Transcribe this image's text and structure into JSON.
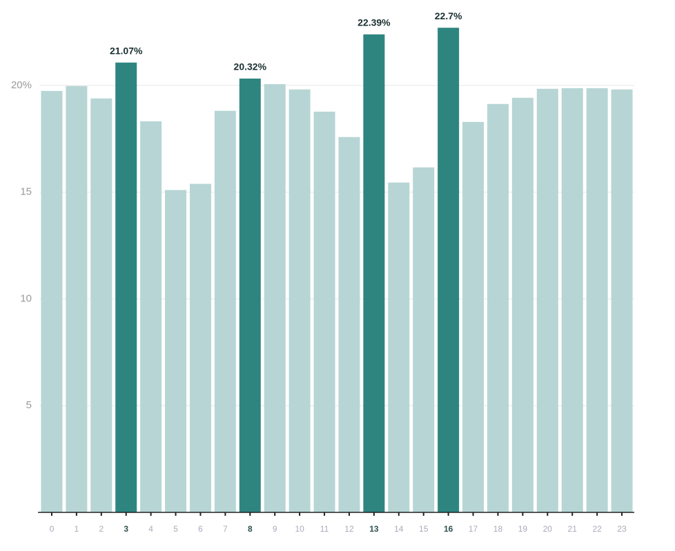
{
  "chart_data": {
    "type": "bar",
    "categories": [
      "0",
      "1",
      "2",
      "3",
      "4",
      "5",
      "6",
      "7",
      "8",
      "9",
      "10",
      "11",
      "12",
      "13",
      "14",
      "15",
      "16",
      "17",
      "18",
      "19",
      "20",
      "21",
      "22",
      "23"
    ],
    "values": [
      19.74,
      19.97,
      19.39,
      21.07,
      18.32,
      15.1,
      15.39,
      18.81,
      20.32,
      20.06,
      19.81,
      18.77,
      17.58,
      22.39,
      15.45,
      16.16,
      22.7,
      18.29,
      19.13,
      19.42,
      19.84,
      19.87,
      19.87,
      19.81
    ],
    "value_labels": [
      null,
      null,
      null,
      "21.07%",
      null,
      null,
      null,
      null,
      "20.32%",
      null,
      null,
      null,
      null,
      "22.39%",
      null,
      null,
      "22.7%",
      null,
      null,
      null,
      null,
      null,
      null,
      null
    ],
    "colors": [
      "#b7d5d5",
      "#b7d5d5",
      "#b7d5d5",
      "#2e8580",
      "#b7d5d5",
      "#b7d5d5",
      "#b7d5d5",
      "#b7d5d5",
      "#2e8580",
      "#b7d5d5",
      "#b7d5d5",
      "#b7d5d5",
      "#b7d5d5",
      "#2e8580",
      "#b7d5d5",
      "#b7d5d5",
      "#2e8580",
      "#b7d5d5",
      "#b7d5d5",
      "#b7d5d5",
      "#b7d5d5",
      "#b7d5d5",
      "#b7d5d5",
      "#b7d5d5"
    ],
    "ylim": [
      0,
      24
    ],
    "yticks": [
      5,
      10,
      15,
      {
        "value": 20,
        "label": "20%"
      }
    ],
    "grid": true
  }
}
